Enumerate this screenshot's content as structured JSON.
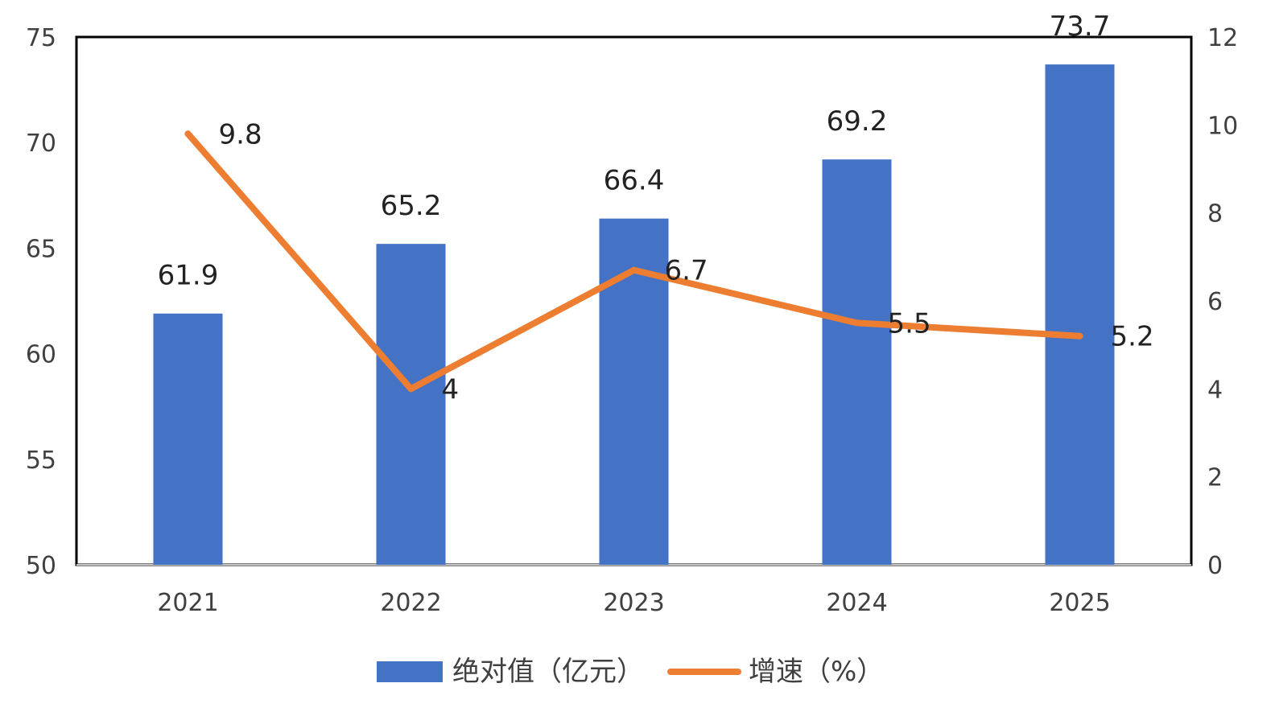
{
  "chart_data": {
    "type": "bar",
    "categories": [
      "2021",
      "2022",
      "2023",
      "2024",
      "2025"
    ],
    "series": [
      {
        "name": "绝对值（亿元）",
        "type": "bar",
        "axis": "left",
        "values": [
          61.9,
          65.2,
          66.4,
          69.2,
          73.7
        ]
      },
      {
        "name": "增速（%）",
        "type": "line",
        "axis": "right",
        "values": [
          9.8,
          4,
          6.7,
          5.5,
          5.2
        ]
      }
    ],
    "y_left": {
      "ylim": [
        50,
        75
      ],
      "ticks": [
        "50",
        "55",
        "60",
        "65",
        "70",
        "75"
      ]
    },
    "y_right": {
      "ylim": [
        0,
        12
      ],
      "ticks": [
        "0",
        "2",
        "4",
        "6",
        "8",
        "10",
        "12"
      ]
    },
    "legend_position": "bottom",
    "grid": false
  },
  "colors": {
    "bar": "#4472C4",
    "line": "#ED7D31",
    "axis": "#000000",
    "text": "#404040"
  }
}
